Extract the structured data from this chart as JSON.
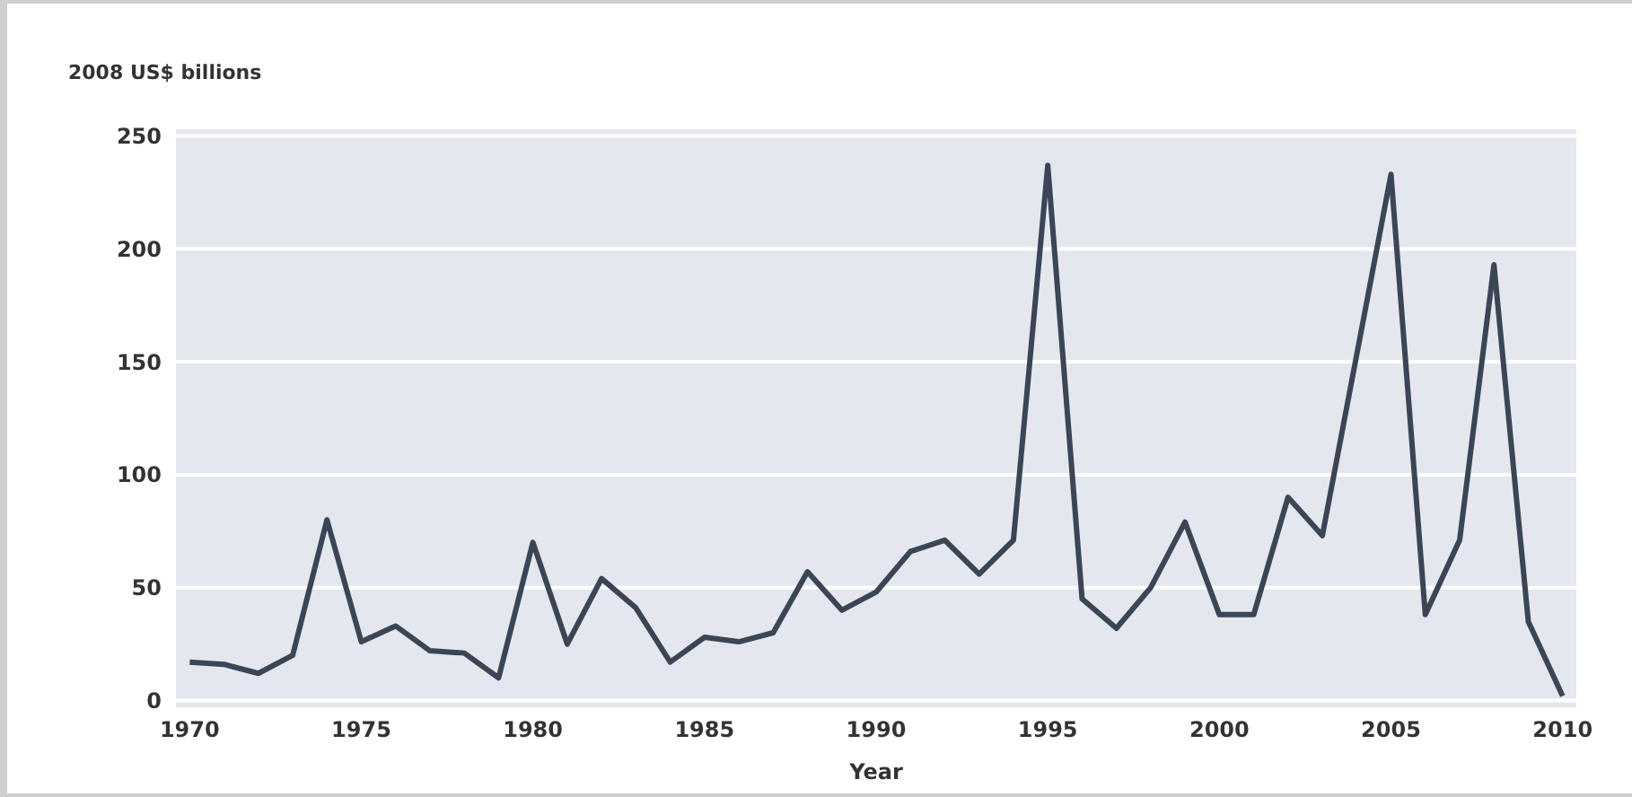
{
  "chart_data": {
    "type": "line",
    "ylabel": "2008 US$ billions",
    "xlabel": "Year",
    "x": [
      1970,
      1971,
      1972,
      1973,
      1974,
      1975,
      1976,
      1977,
      1978,
      1979,
      1980,
      1981,
      1982,
      1983,
      1984,
      1985,
      1986,
      1987,
      1988,
      1989,
      1990,
      1991,
      1992,
      1993,
      1994,
      1995,
      1996,
      1997,
      1998,
      1999,
      2000,
      2001,
      2002,
      2003,
      2004,
      2005,
      2006,
      2007,
      2008,
      2009,
      2010
    ],
    "series": [
      {
        "color": "#3a4556",
        "values": [
          17,
          16,
          12,
          20,
          80,
          26,
          33,
          22,
          21,
          10,
          70,
          25,
          54,
          41,
          17,
          28,
          26,
          30,
          57,
          40,
          48,
          66,
          71,
          56,
          71,
          237,
          45,
          32,
          50,
          79,
          38,
          38,
          90,
          73,
          153,
          233,
          38,
          71,
          193,
          35,
          2
        ]
      }
    ],
    "xlim": [
      1969.6,
      2010.4
    ],
    "ylim": [
      -3,
      253
    ],
    "xticks": [
      1970,
      1975,
      1980,
      1985,
      1990,
      1995,
      2000,
      2005,
      2010
    ],
    "yticks": [
      0,
      50,
      100,
      150,
      200,
      250
    ],
    "grid": "y",
    "legend": false,
    "marker": "none",
    "line_style": "solid"
  }
}
